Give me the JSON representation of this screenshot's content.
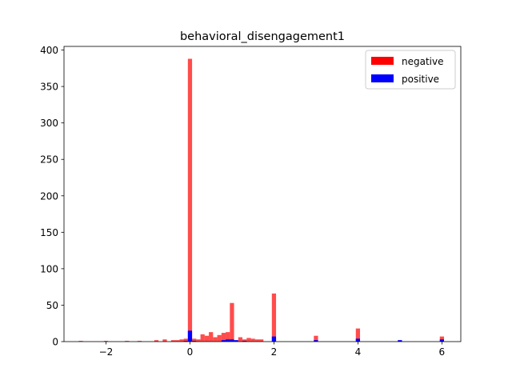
{
  "chart_data": {
    "type": "bar",
    "title": "behavioral_disengagement1",
    "xlabel": "",
    "ylabel": "",
    "xlim": [
      -3.0,
      6.45
    ],
    "ylim": [
      0,
      405
    ],
    "xticks": [
      -2,
      0,
      2,
      4,
      6
    ],
    "xtick_labels": [
      "−2",
      "0",
      "2",
      "4",
      "6"
    ],
    "yticks": [
      0,
      50,
      100,
      150,
      200,
      250,
      300,
      350,
      400
    ],
    "ytick_labels": [
      "0",
      "50",
      "100",
      "150",
      "200",
      "250",
      "300",
      "350",
      "400"
    ],
    "grid": false,
    "legend_position": "upper right",
    "bin_width": 0.1,
    "series": [
      {
        "name": "negative",
        "color": "#ff0000",
        "alpha": 0.7,
        "points": [
          [
            -2.6,
            1
          ],
          [
            -2.0,
            1
          ],
          [
            -1.5,
            1
          ],
          [
            -1.2,
            1
          ],
          [
            -0.8,
            2
          ],
          [
            -0.6,
            3
          ],
          [
            -0.4,
            2
          ],
          [
            -0.3,
            2
          ],
          [
            -0.2,
            3
          ],
          [
            -0.1,
            4
          ],
          [
            0.0,
            388
          ],
          [
            0.1,
            4
          ],
          [
            0.2,
            3
          ],
          [
            0.3,
            10
          ],
          [
            0.4,
            8
          ],
          [
            0.5,
            13
          ],
          [
            0.6,
            6
          ],
          [
            0.7,
            9
          ],
          [
            0.8,
            12
          ],
          [
            0.9,
            13
          ],
          [
            1.0,
            53
          ],
          [
            1.2,
            6
          ],
          [
            1.3,
            3
          ],
          [
            1.4,
            5
          ],
          [
            1.5,
            4
          ],
          [
            1.6,
            3
          ],
          [
            1.7,
            3
          ],
          [
            2.0,
            66
          ],
          [
            3.0,
            8
          ],
          [
            4.0,
            18
          ],
          [
            6.0,
            7
          ]
        ]
      },
      {
        "name": "positive",
        "color": "#0000ff",
        "alpha": 1.0,
        "points": [
          [
            -0.1,
            1
          ],
          [
            0.0,
            15
          ],
          [
            0.1,
            1
          ],
          [
            0.8,
            2
          ],
          [
            0.9,
            3
          ],
          [
            1.0,
            3
          ],
          [
            1.1,
            2
          ],
          [
            1.3,
            1
          ],
          [
            2.0,
            7
          ],
          [
            3.0,
            2
          ],
          [
            4.0,
            4
          ],
          [
            5.0,
            2
          ],
          [
            6.0,
            3
          ]
        ]
      }
    ]
  }
}
